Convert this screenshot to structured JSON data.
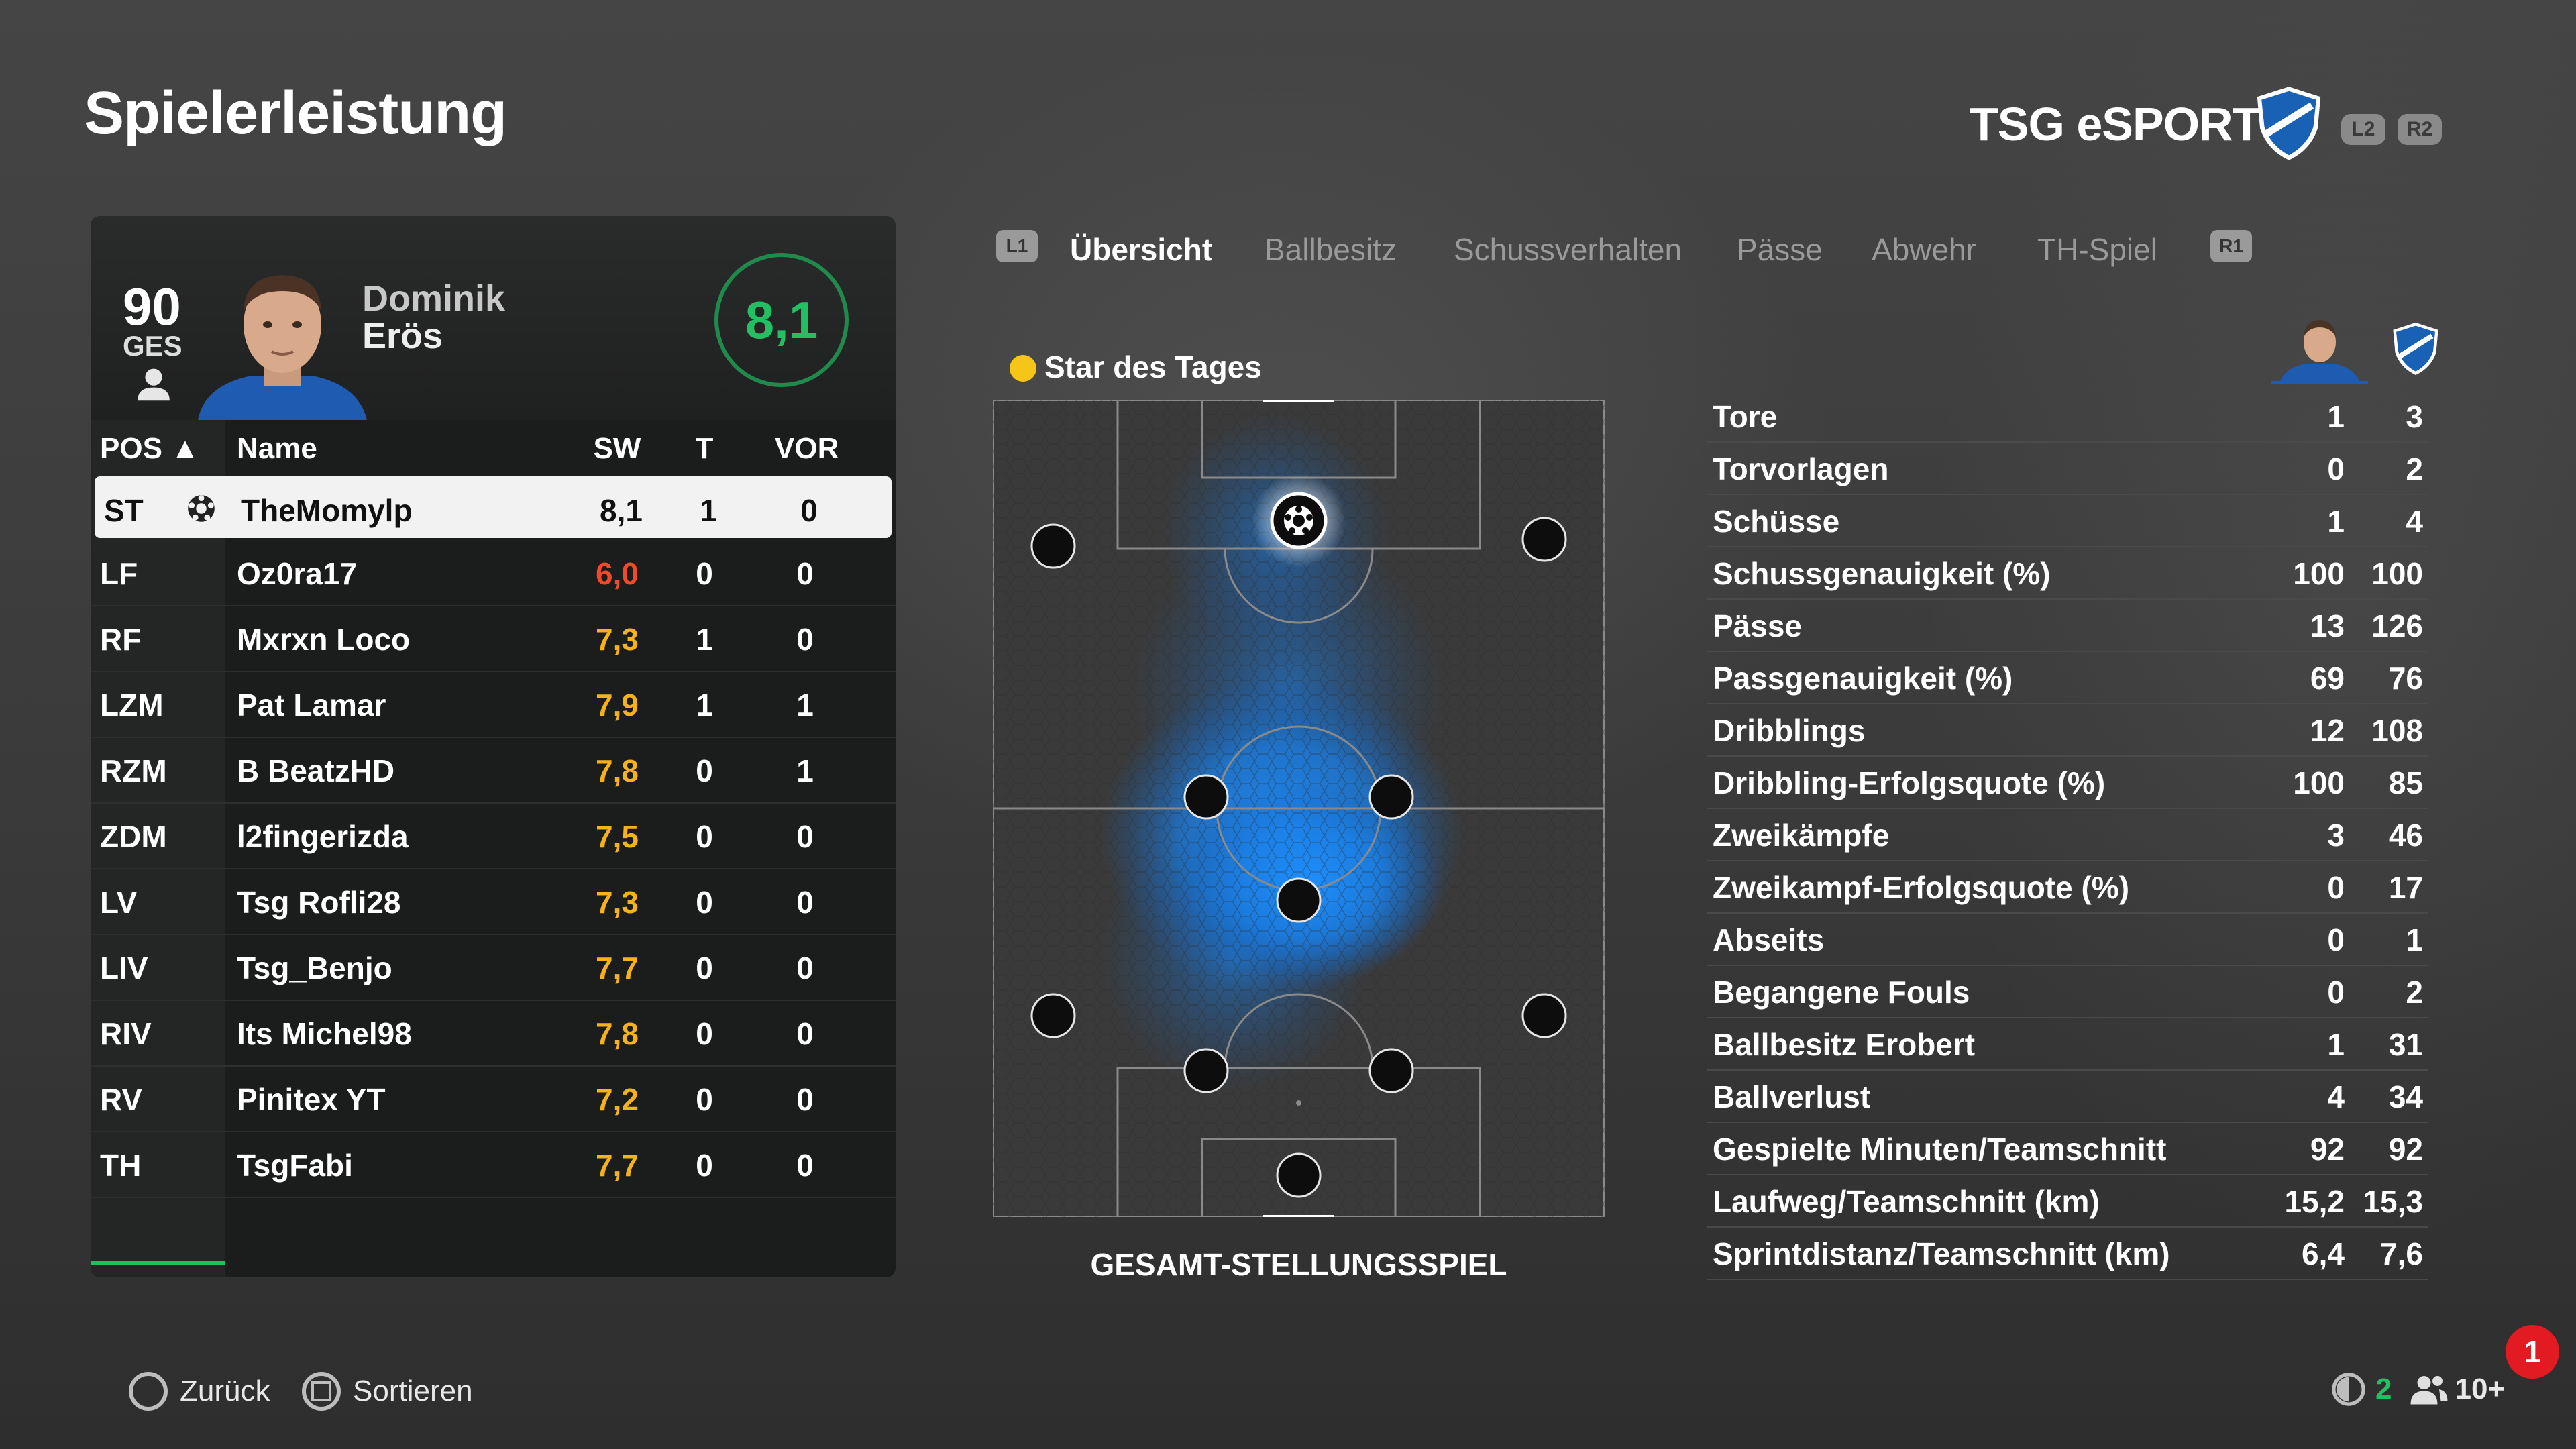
{
  "page_title": "Spielerleistung",
  "team": {
    "name": "TSG eSPORTS",
    "shoulder_left": "L2",
    "shoulder_right": "R2",
    "crest_color": "#1961b4"
  },
  "player": {
    "overall": "90",
    "overall_label": "GES",
    "first_name": "Dominik",
    "last_name": "Erös",
    "rating": "8,1"
  },
  "table": {
    "headers": {
      "pos": "POS ▲",
      "name": "Name",
      "sw": "SW",
      "t": "T",
      "vor": "VOR"
    },
    "rows": [
      {
        "pos": "ST",
        "name": "TheMomylp",
        "sw": "8,1",
        "t": "1",
        "vor": "0",
        "selected": true,
        "color": "#111111"
      },
      {
        "pos": "LF",
        "name": "Oz0ra17",
        "sw": "6,0",
        "t": "0",
        "vor": "0",
        "color": "#f04a2a"
      },
      {
        "pos": "RF",
        "name": "Mxrxn Loco",
        "sw": "7,3",
        "t": "1",
        "vor": "0",
        "color": "#f5b21b"
      },
      {
        "pos": "LZM",
        "name": "Pat Lamar",
        "sw": "7,9",
        "t": "1",
        "vor": "1",
        "color": "#f5b21b"
      },
      {
        "pos": "RZM",
        "name": "B BeatzHD",
        "sw": "7,8",
        "t": "0",
        "vor": "1",
        "color": "#f5b21b"
      },
      {
        "pos": "ZDM",
        "name": "l2fingerizda",
        "sw": "7,5",
        "t": "0",
        "vor": "0",
        "color": "#f5b21b"
      },
      {
        "pos": "LV",
        "name": "Tsg Rofli28",
        "sw": "7,3",
        "t": "0",
        "vor": "0",
        "color": "#f5b21b"
      },
      {
        "pos": "LIV",
        "name": "Tsg_Benjo",
        "sw": "7,7",
        "t": "0",
        "vor": "0",
        "color": "#f5b21b"
      },
      {
        "pos": "RIV",
        "name": "Its Michel98",
        "sw": "7,8",
        "t": "0",
        "vor": "0",
        "color": "#f5b21b"
      },
      {
        "pos": "RV",
        "name": "Pinitex YT",
        "sw": "7,2",
        "t": "0",
        "vor": "0",
        "color": "#f5b21b"
      },
      {
        "pos": "TH",
        "name": "TsgFabi",
        "sw": "7,7",
        "t": "0",
        "vor": "0",
        "color": "#f5b21b"
      }
    ]
  },
  "tabs": {
    "left_badge": "L1",
    "right_badge": "R1",
    "items": [
      "Übersicht",
      "Ballbesitz",
      "Schussverhalten",
      "Pässe",
      "Abwehr",
      "TH-Spiel"
    ],
    "active": "Übersicht"
  },
  "pitch": {
    "star_label": "Star des Tages",
    "caption": "GESAMT-STELLUNGSSPIEL",
    "heat_color": "#1e90ff"
  },
  "stats": [
    {
      "label": "Tore",
      "player": "1",
      "team": "3"
    },
    {
      "label": "Torvorlagen",
      "player": "0",
      "team": "2"
    },
    {
      "label": "Schüsse",
      "player": "1",
      "team": "4"
    },
    {
      "label": "Schussgenauigkeit (%)",
      "player": "100",
      "team": "100"
    },
    {
      "label": "Pässe",
      "player": "13",
      "team": "126"
    },
    {
      "label": "Passgenauigkeit (%)",
      "player": "69",
      "team": "76"
    },
    {
      "label": "Dribblings",
      "player": "12",
      "team": "108"
    },
    {
      "label": "Dribbling-Erfolgsquote (%)",
      "player": "100",
      "team": "85"
    },
    {
      "label": "Zweikämpfe",
      "player": "3",
      "team": "46"
    },
    {
      "label": "Zweikampf-Erfolgsquote (%)",
      "player": "0",
      "team": "17"
    },
    {
      "label": "Abseits",
      "player": "0",
      "team": "1"
    },
    {
      "label": "Begangene Fouls",
      "player": "0",
      "team": "2"
    },
    {
      "label": "Ballbesitz Erobert",
      "player": "1",
      "team": "31"
    },
    {
      "label": "Ballverlust",
      "player": "4",
      "team": "34"
    },
    {
      "label": "Gespielte Minuten/Teamschnitt",
      "player": "92",
      "team": "92"
    },
    {
      "label": "Laufweg/Teamschnitt (km)",
      "player": "15,2",
      "team": "15,3"
    },
    {
      "label": "Sprintdistanz/Teamschnitt (km)",
      "player": "6,4",
      "team": "7,6"
    }
  ],
  "footer": {
    "back": "Zurück",
    "sort": "Sortieren",
    "voice_count": "2",
    "players_count": "10+",
    "notification": "1"
  }
}
